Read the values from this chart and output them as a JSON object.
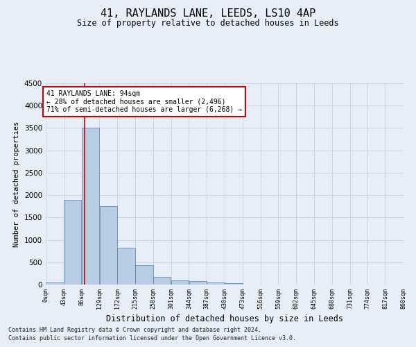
{
  "title": "41, RAYLANDS LANE, LEEDS, LS10 4AP",
  "subtitle": "Size of property relative to detached houses in Leeds",
  "xlabel": "Distribution of detached houses by size in Leeds",
  "ylabel": "Number of detached properties",
  "footnote1": "Contains HM Land Registry data © Crown copyright and database right 2024.",
  "footnote2": "Contains public sector information licensed under the Open Government Licence v3.0.",
  "annotation_line1": "41 RAYLANDS LANE: 94sqm",
  "annotation_line2": "← 28% of detached houses are smaller (2,496)",
  "annotation_line3": "71% of semi-detached houses are larger (6,268) →",
  "bar_color": "#b8cce4",
  "bar_edge_color": "#5080b0",
  "bar_values": [
    40,
    1900,
    3500,
    1750,
    830,
    440,
    170,
    100,
    70,
    40,
    30,
    0,
    0,
    0,
    0,
    0,
    0,
    0,
    0,
    0
  ],
  "bin_edges": [
    0,
    43,
    86,
    129,
    172,
    215,
    258,
    301,
    344,
    387,
    430,
    473,
    516,
    559,
    602,
    645,
    688,
    731,
    774,
    817,
    860
  ],
  "bin_labels": [
    "0sqm",
    "43sqm",
    "86sqm",
    "129sqm",
    "172sqm",
    "215sqm",
    "258sqm",
    "301sqm",
    "344sqm",
    "387sqm",
    "430sqm",
    "473sqm",
    "516sqm",
    "559sqm",
    "602sqm",
    "645sqm",
    "688sqm",
    "731sqm",
    "774sqm",
    "817sqm",
    "860sqm"
  ],
  "vline_x": 94,
  "vline_color": "#cc0000",
  "ylim": [
    0,
    4500
  ],
  "yticks": [
    0,
    500,
    1000,
    1500,
    2000,
    2500,
    3000,
    3500,
    4000,
    4500
  ],
  "grid_color": "#c8d4e8",
  "background_color": "#e8eef8",
  "plot_bg_color": "#e8eef8",
  "annotation_box_color": "#ffffff",
  "annotation_border_color": "#cc0000",
  "title_fontsize": 11,
  "subtitle_fontsize": 8.5,
  "ylabel_fontsize": 7.5,
  "xlabel_fontsize": 8.5,
  "ytick_fontsize": 7.5,
  "xtick_fontsize": 6,
  "annot_fontsize": 7,
  "footnote_fontsize": 6
}
